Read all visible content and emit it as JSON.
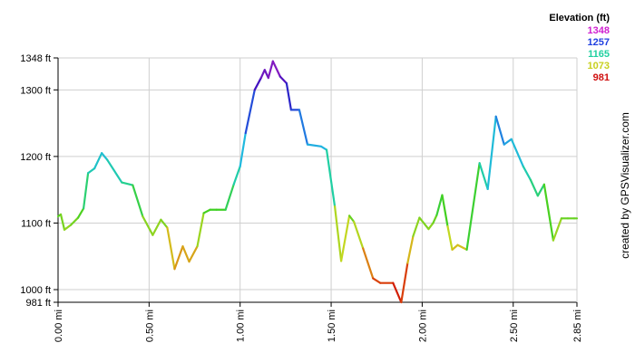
{
  "chart_data": {
    "type": "line",
    "ylim": [
      981,
      1348
    ],
    "xlim": [
      0,
      2.85
    ],
    "y_ticks": [
      {
        "value": 981,
        "label": "981 ft"
      },
      {
        "value": 1000,
        "label": "1000 ft"
      },
      {
        "value": 1100,
        "label": "1100 ft"
      },
      {
        "value": 1200,
        "label": "1200 ft"
      },
      {
        "value": 1300,
        "label": "1300 ft"
      },
      {
        "value": 1348,
        "label": "1348 ft"
      }
    ],
    "x_ticks": [
      {
        "value": 0.0,
        "label": "0.00 mi"
      },
      {
        "value": 0.5,
        "label": "0.50 mi"
      },
      {
        "value": 1.0,
        "label": "1.00 mi"
      },
      {
        "value": 1.5,
        "label": "1.50 mi"
      },
      {
        "value": 2.0,
        "label": "2.00 mi"
      },
      {
        "value": 2.5,
        "label": "2.50 mi"
      },
      {
        "value": 2.85,
        "label": "2.85 mi"
      }
    ],
    "grid": true,
    "legend_position": "top-right",
    "legend": {
      "title": "Elevation (ft)",
      "entries": [
        {
          "label": "1348",
          "color": "#d020d0"
        },
        {
          "label": "1257",
          "color": "#2040e0"
        },
        {
          "label": "1165",
          "color": "#20d0a0"
        },
        {
          "label": "1073",
          "color": "#c8d020"
        },
        {
          "label": "981",
          "color": "#d01010"
        }
      ]
    },
    "color_stops": [
      {
        "value": 981,
        "color": "#cc0000"
      },
      {
        "value": 1027,
        "color": "#e06010"
      },
      {
        "value": 1073,
        "color": "#d0d820"
      },
      {
        "value": 1119,
        "color": "#40d020"
      },
      {
        "value": 1165,
        "color": "#20d0a0"
      },
      {
        "value": 1211,
        "color": "#20b8e0"
      },
      {
        "value": 1257,
        "color": "#2060e0"
      },
      {
        "value": 1302,
        "color": "#3010c0"
      },
      {
        "value": 1348,
        "color": "#b020c0"
      }
    ],
    "x": [
      0.0,
      0.015,
      0.035,
      0.07,
      0.11,
      0.14,
      0.165,
      0.2,
      0.24,
      0.27,
      0.35,
      0.41,
      0.465,
      0.52,
      0.565,
      0.6,
      0.64,
      0.685,
      0.72,
      0.765,
      0.8,
      0.835,
      0.87,
      0.92,
      0.965,
      1.0,
      1.03,
      1.08,
      1.115,
      1.135,
      1.155,
      1.18,
      1.22,
      1.255,
      1.28,
      1.325,
      1.37,
      1.445,
      1.475,
      1.52,
      1.555,
      1.6,
      1.625,
      1.675,
      1.73,
      1.77,
      1.84,
      1.885,
      1.92,
      1.95,
      1.985,
      2.035,
      2.06,
      2.08,
      2.11,
      2.14,
      2.165,
      2.195,
      2.245,
      2.315,
      2.36,
      2.405,
      2.45,
      2.49,
      2.555,
      2.595,
      2.635,
      2.67,
      2.72,
      2.765,
      2.8,
      2.835,
      2.85
    ],
    "y": [
      1110,
      1113,
      1090,
      1097,
      1108,
      1122,
      1175,
      1182,
      1205,
      1195,
      1161,
      1157,
      1110,
      1082,
      1105,
      1093,
      1031,
      1065,
      1042,
      1065,
      1115,
      1120,
      1120,
      1120,
      1158,
      1185,
      1235,
      1300,
      1318,
      1330,
      1318,
      1343,
      1320,
      1310,
      1270,
      1270,
      1218,
      1215,
      1210,
      1125,
      1043,
      1111,
      1102,
      1062,
      1017,
      1010,
      1010,
      981,
      1040,
      1080,
      1108,
      1091,
      1100,
      1112,
      1142,
      1095,
      1060,
      1067,
      1060,
      1190,
      1151,
      1260,
      1218,
      1226,
      1185,
      1165,
      1141,
      1158,
      1074,
      1107,
      1107,
      1107,
      1107
    ]
  }
}
